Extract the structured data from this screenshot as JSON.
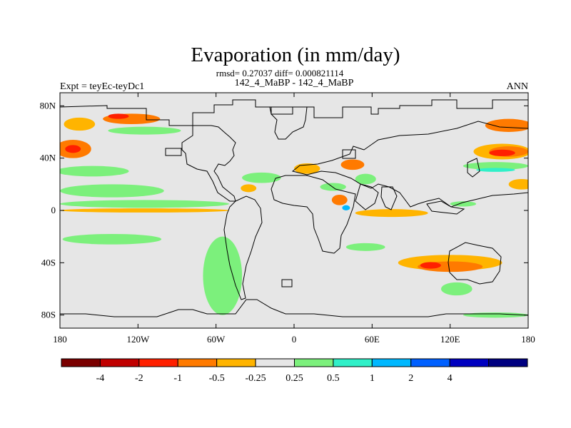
{
  "chart_data": {
    "type": "heatmap",
    "title": "Evaporation (in mm/day)",
    "stats": "rmsd= 0.27037 diff= 0.000821114",
    "case_label": "142_4_MaBP - 142_4_MaBP",
    "left_label": "Expt = teyEc-teyDc1",
    "right_label": "ANN",
    "x_ticks": [
      {
        "value": -180,
        "label": "180"
      },
      {
        "value": -120,
        "label": "120W"
      },
      {
        "value": -60,
        "label": "60W"
      },
      {
        "value": 0,
        "label": "0"
      },
      {
        "value": 60,
        "label": "60E"
      },
      {
        "value": 120,
        "label": "120E"
      },
      {
        "value": 180,
        "label": "180"
      }
    ],
    "y_ticks": [
      {
        "value": 80,
        "label": "80N"
      },
      {
        "value": 40,
        "label": "40N"
      },
      {
        "value": 0,
        "label": "0"
      },
      {
        "value": -40,
        "label": "40S"
      },
      {
        "value": -80,
        "label": "80S"
      }
    ],
    "xlim": [
      -180,
      180
    ],
    "ylim": [
      -90,
      90
    ],
    "colorbar": {
      "colors": [
        "#7a0000",
        "#c00000",
        "#ff2000",
        "#ff7a00",
        "#ffb400",
        "#e6e6e6",
        "#7cf07c",
        "#30f0c8",
        "#00b8ff",
        "#0060ff",
        "#0000c0",
        "#000080"
      ],
      "labels": [
        "-4",
        "-2",
        "-1",
        "-0.5",
        "-0.25",
        "0.25",
        "0.5",
        "1",
        "2",
        "4"
      ]
    },
    "anomaly_regions": [
      {
        "lon": -170,
        "lat": 47,
        "rx": 14,
        "ry": 7,
        "value": -0.75
      },
      {
        "lon": -170,
        "lat": 47,
        "rx": 6,
        "ry": 3,
        "value": -1.5
      },
      {
        "lon": -165,
        "lat": 66,
        "rx": 12,
        "ry": 5,
        "value": -0.4
      },
      {
        "lon": -125,
        "lat": 70,
        "rx": 22,
        "ry": 4,
        "value": -0.6
      },
      {
        "lon": -135,
        "lat": 72,
        "rx": 8,
        "ry": 2,
        "value": -1.5
      },
      {
        "lon": -115,
        "lat": 61,
        "rx": 28,
        "ry": 3,
        "value": 0.35
      },
      {
        "lon": -155,
        "lat": 30,
        "rx": 28,
        "ry": 4,
        "value": 0.35
      },
      {
        "lon": -140,
        "lat": 15,
        "rx": 40,
        "ry": 5,
        "value": 0.35
      },
      {
        "lon": -115,
        "lat": 5,
        "rx": 65,
        "ry": 3,
        "value": 0.35
      },
      {
        "lon": -115,
        "lat": 0,
        "rx": 65,
        "ry": 1.6,
        "value": -0.4
      },
      {
        "lon": -140,
        "lat": -22,
        "rx": 38,
        "ry": 4,
        "value": 0.35
      },
      {
        "lon": -55,
        "lat": -50,
        "rx": 15,
        "ry": 30,
        "value": 0.35
      },
      {
        "lon": -25,
        "lat": 25,
        "rx": 15,
        "ry": 4,
        "value": 0.35
      },
      {
        "lon": -35,
        "lat": 17,
        "rx": 6,
        "ry": 3,
        "value": -0.4
      },
      {
        "lon": 10,
        "lat": 32,
        "rx": 10,
        "ry": 4,
        "value": -0.4
      },
      {
        "lon": 30,
        "lat": 18,
        "rx": 10,
        "ry": 3,
        "value": 0.35
      },
      {
        "lon": 45,
        "lat": 35,
        "rx": 9,
        "ry": 4,
        "value": -0.75
      },
      {
        "lon": 55,
        "lat": 24,
        "rx": 8,
        "ry": 4,
        "value": 0.35
      },
      {
        "lon": 35,
        "lat": 8,
        "rx": 6,
        "ry": 4,
        "value": -0.75
      },
      {
        "lon": 40,
        "lat": 2,
        "rx": 3,
        "ry": 2,
        "value": 1.5
      },
      {
        "lon": 75,
        "lat": -2,
        "rx": 28,
        "ry": 3,
        "value": -0.4
      },
      {
        "lon": 55,
        "lat": -28,
        "rx": 15,
        "ry": 3,
        "value": 0.35
      },
      {
        "lon": 120,
        "lat": -40,
        "rx": 40,
        "ry": 6,
        "value": -0.4
      },
      {
        "lon": 120,
        "lat": -43,
        "rx": 25,
        "ry": 4,
        "value": -0.75
      },
      {
        "lon": 105,
        "lat": -42,
        "rx": 8,
        "ry": 2.5,
        "value": -1.5
      },
      {
        "lon": 125,
        "lat": -60,
        "rx": 12,
        "ry": 5,
        "value": 0.35
      },
      {
        "lon": 160,
        "lat": 45,
        "rx": 22,
        "ry": 6,
        "value": -0.4
      },
      {
        "lon": 165,
        "lat": 45,
        "rx": 15,
        "ry": 4,
        "value": -0.75
      },
      {
        "lon": 160,
        "lat": 44,
        "rx": 10,
        "ry": 2.5,
        "value": -1.5
      },
      {
        "lon": 155,
        "lat": 34,
        "rx": 25,
        "ry": 3,
        "value": 0.35
      },
      {
        "lon": 155,
        "lat": 31,
        "rx": 15,
        "ry": 1.5,
        "value": 0.75
      },
      {
        "lon": 165,
        "lat": 65,
        "rx": 18,
        "ry": 5,
        "value": -0.6
      },
      {
        "lon": 175,
        "lat": 20,
        "rx": 10,
        "ry": 4,
        "value": -0.4
      },
      {
        "lon": 130,
        "lat": 5,
        "rx": 10,
        "ry": 2,
        "value": 0.35
      },
      {
        "lon": 155,
        "lat": -80,
        "rx": 25,
        "ry": 2,
        "value": 0.35
      }
    ]
  }
}
